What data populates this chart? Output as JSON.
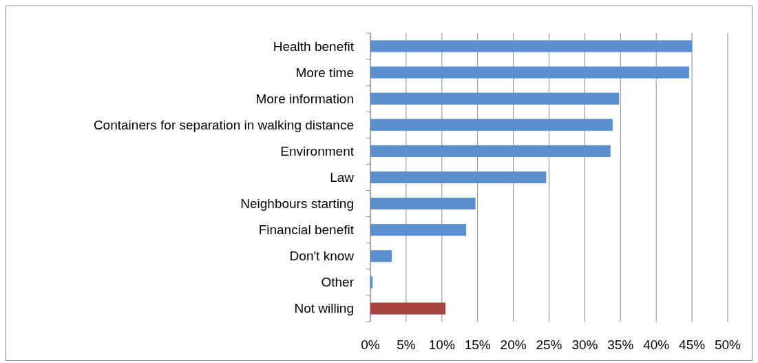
{
  "chart_data": {
    "type": "bar",
    "orientation": "horizontal",
    "categories": [
      "Health benefit",
      "More time",
      "More information",
      "Containers for separation in walking distance",
      "Environment",
      "Law",
      "Neighbours starting",
      "Financial benefit",
      "Don't know",
      "Other",
      "Not willing"
    ],
    "values": [
      45.0,
      44.6,
      34.8,
      33.9,
      33.6,
      24.6,
      14.7,
      13.4,
      3.0,
      0.3,
      10.5
    ],
    "colors": [
      "#5b8fd0",
      "#5b8fd0",
      "#5b8fd0",
      "#5b8fd0",
      "#5b8fd0",
      "#5b8fd0",
      "#5b8fd0",
      "#5b8fd0",
      "#5b8fd0",
      "#5b8fd0",
      "#a5443f"
    ],
    "xlim": [
      0,
      50
    ],
    "xticks": [
      {
        "value": 0,
        "label": "0%"
      },
      {
        "value": 5,
        "label": "5%"
      },
      {
        "value": 10,
        "label": "10%"
      },
      {
        "value": 15,
        "label": "15%"
      },
      {
        "value": 20,
        "label": "20%"
      },
      {
        "value": 25,
        "label": "25%"
      },
      {
        "value": 30,
        "label": "30%"
      },
      {
        "value": 35,
        "label": "35%"
      },
      {
        "value": 40,
        "label": "40%"
      },
      {
        "value": 45,
        "label": "45%"
      },
      {
        "value": 50,
        "label": "50%"
      }
    ],
    "grid": "x"
  }
}
